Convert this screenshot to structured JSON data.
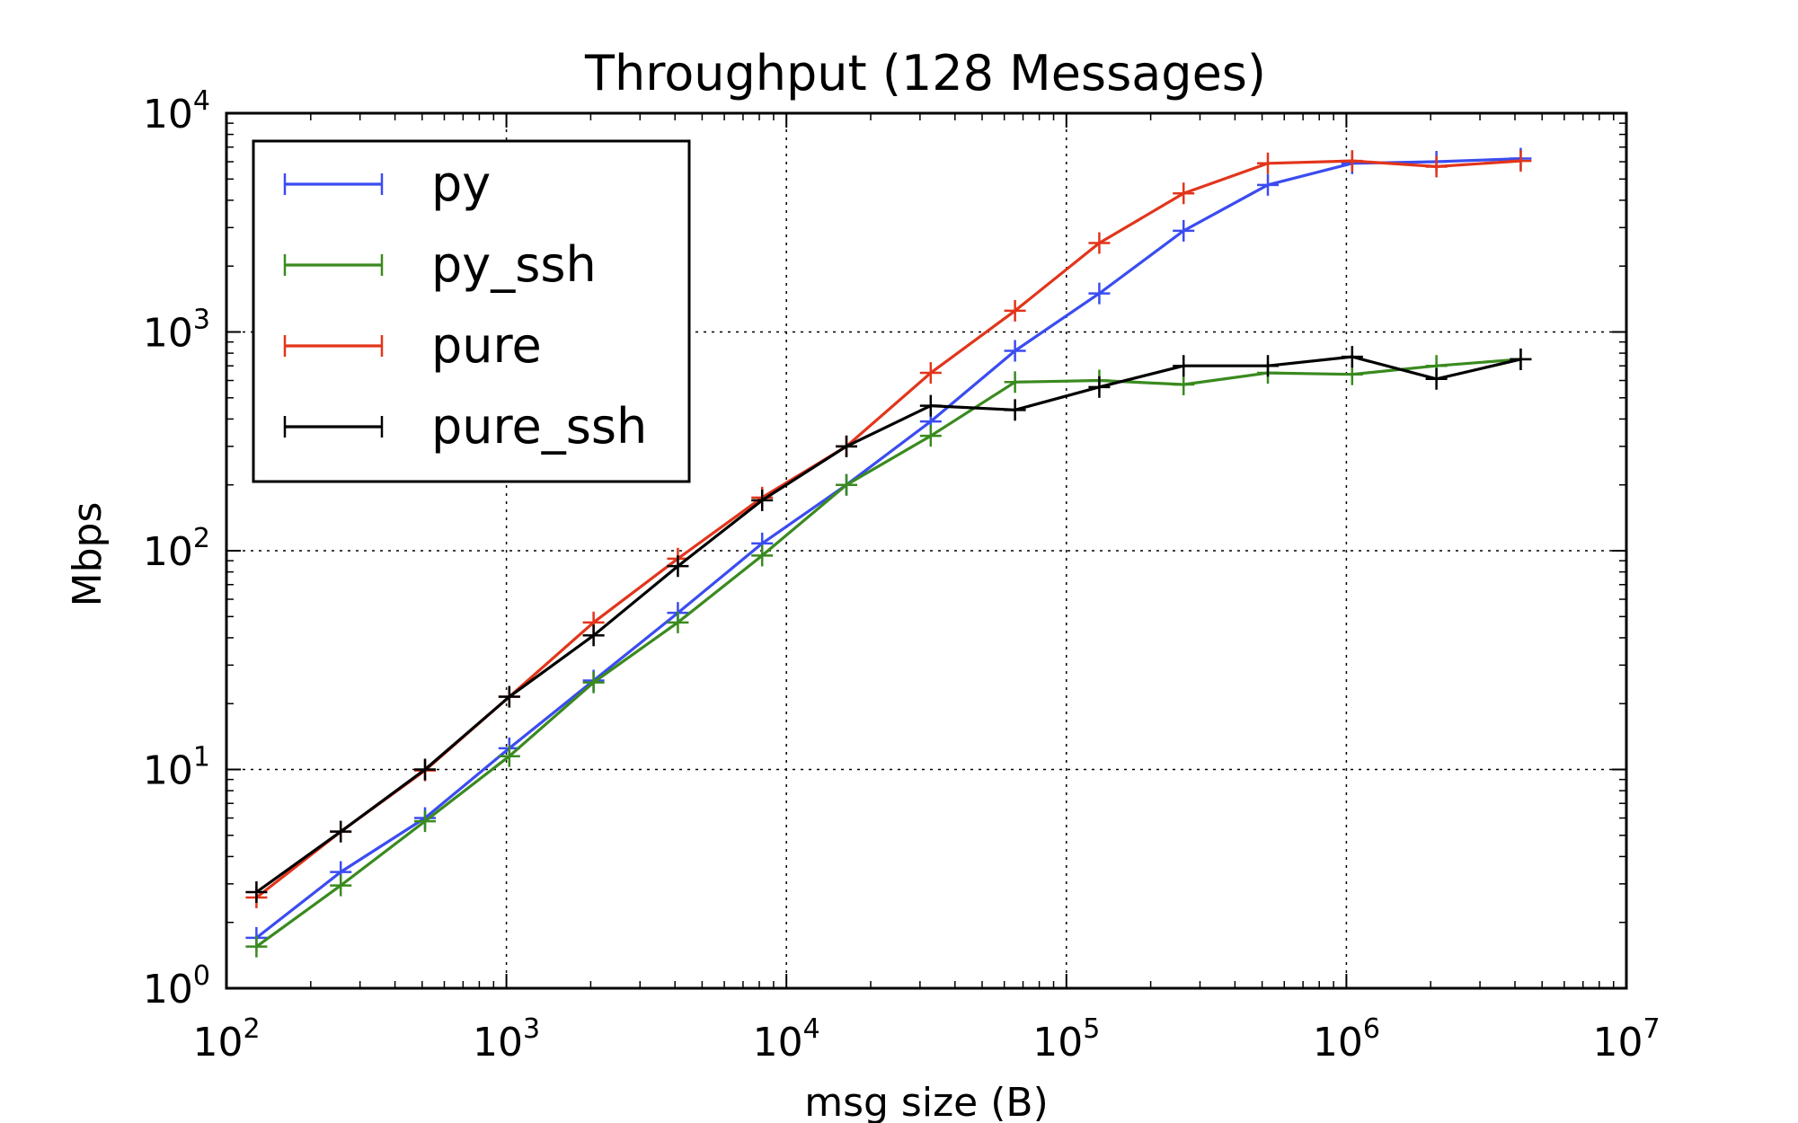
{
  "chart_data": {
    "type": "line",
    "title": "Throughput (128 Messages)",
    "xlabel": "msg size (B)",
    "ylabel": "Mbps",
    "x_scale": "log",
    "y_scale": "log",
    "xlim": [
      100,
      10000000
    ],
    "ylim": [
      1,
      10000
    ],
    "grid": true,
    "legend_position": "top-left",
    "x_ticks": [
      {
        "base": "10",
        "exp": "2",
        "value": 100
      },
      {
        "base": "10",
        "exp": "3",
        "value": 1000
      },
      {
        "base": "10",
        "exp": "4",
        "value": 10000
      },
      {
        "base": "10",
        "exp": "5",
        "value": 100000
      },
      {
        "base": "10",
        "exp": "6",
        "value": 1000000
      },
      {
        "base": "10",
        "exp": "7",
        "value": 10000000
      }
    ],
    "y_ticks": [
      {
        "base": "10",
        "exp": "0",
        "value": 1
      },
      {
        "base": "10",
        "exp": "1",
        "value": 10
      },
      {
        "base": "10",
        "exp": "2",
        "value": 100
      },
      {
        "base": "10",
        "exp": "3",
        "value": 1000
      },
      {
        "base": "10",
        "exp": "4",
        "value": 10000
      }
    ],
    "x": [
      128,
      256,
      512,
      1024,
      2048,
      4096,
      8192,
      16384,
      32768,
      65536,
      131072,
      262144,
      524288,
      1048576,
      2097152,
      4194304
    ],
    "series": [
      {
        "name": "py",
        "color": "#3b4cf0",
        "values": [
          1.7,
          3.4,
          6.0,
          12.5,
          25.5,
          52,
          108,
          200,
          390,
          820,
          1500,
          2900,
          4700,
          5900,
          6000,
          6200
        ]
      },
      {
        "name": "py_ssh",
        "color": "#3a8a1f",
        "values": [
          1.55,
          2.95,
          5.8,
          11.5,
          25,
          47,
          95,
          200,
          335,
          590,
          600,
          575,
          650,
          640,
          700,
          750
        ]
      },
      {
        "name": "pure",
        "color": "#e2351b",
        "values": [
          2.6,
          5.2,
          9.9,
          21.5,
          47,
          92,
          175,
          300,
          650,
          1250,
          2550,
          4300,
          5900,
          6050,
          5700,
          6050
        ]
      },
      {
        "name": "pure_ssh",
        "color": "#000000",
        "values": [
          2.75,
          5.2,
          10,
          21.5,
          41,
          85,
          170,
          300,
          460,
          440,
          560,
          700,
          700,
          770,
          610,
          750
        ]
      }
    ]
  }
}
